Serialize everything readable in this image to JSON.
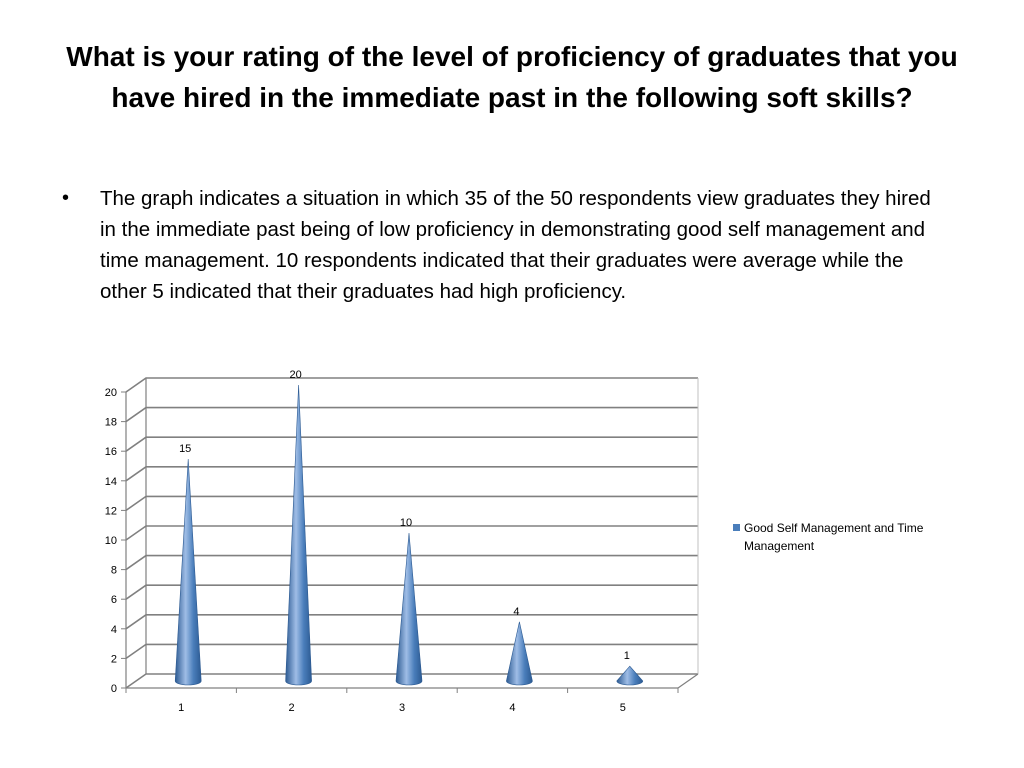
{
  "slide": {
    "title": "What is your rating of the level of proficiency of graduates that you have hired in the immediate past in the following soft skills?",
    "bullet_symbol": "•",
    "bullet_text": "The graph indicates a situation in which 35 of the 50 respondents view graduates they hired in the immediate past being of low proficiency in demonstrating good self management and time management. 10 respondents indicated that their graduates were average while the other 5 indicated that their graduates had high proficiency."
  },
  "chart_data": {
    "type": "bar",
    "bar_shape": "cone",
    "categories": [
      "1",
      "2",
      "3",
      "4",
      "5"
    ],
    "series": [
      {
        "name": "Good Self Management and Time Management",
        "values": [
          15,
          20,
          10,
          4,
          1
        ],
        "color": "#4a7ebb"
      }
    ],
    "ylim": [
      0,
      20
    ],
    "yticks": [
      0,
      2,
      4,
      6,
      8,
      10,
      12,
      14,
      16,
      18,
      20
    ],
    "data_labels": [
      "15",
      "20",
      "10",
      "4",
      "1"
    ],
    "grid": true,
    "legend_position": "right",
    "title": "",
    "xlabel": "",
    "ylabel": ""
  },
  "legend": {
    "line1": "Good Self Management and Time",
    "line2": "Management"
  },
  "colors": {
    "bar": "#4a7ebb",
    "bar_dark": "#2c5a92",
    "bar_light": "#9fbde6",
    "grid": "#808080"
  }
}
